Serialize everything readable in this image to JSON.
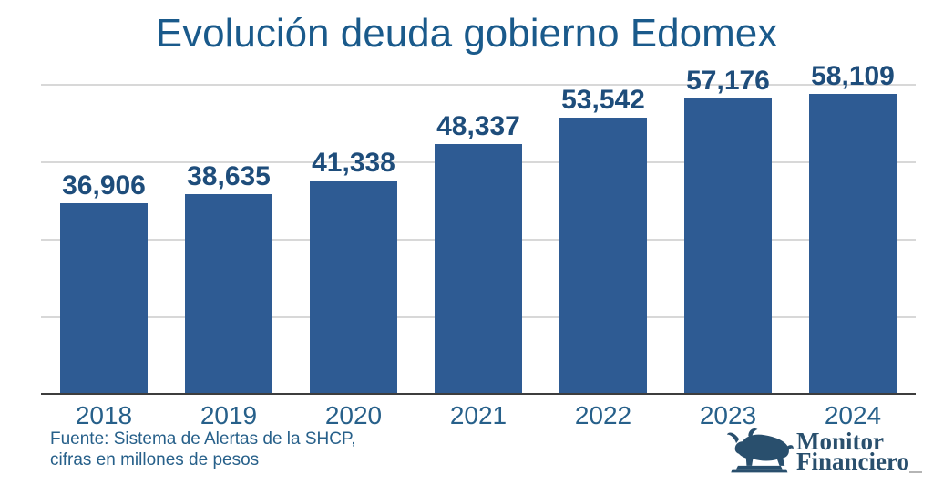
{
  "chart_data": {
    "type": "bar",
    "title": "Evolución deuda gobierno Edomex",
    "categories": [
      "2018",
      "2019",
      "2020",
      "2021",
      "2022",
      "2023",
      "2024"
    ],
    "values": [
      36906,
      38635,
      41338,
      48337,
      53542,
      57176,
      58109
    ],
    "value_labels": [
      "36,906",
      "38,635",
      "41,338",
      "48,337",
      "53,542",
      "57,176",
      "58,109"
    ],
    "xlabel": "",
    "ylabel": "",
    "ylim": [
      0,
      60000
    ],
    "grid_step": 15000,
    "grid": true,
    "legend": false,
    "bar_orientation": "vertical"
  },
  "footer": {
    "source_line1": "Fuente: Sistema de Alertas de la SHCP,",
    "source_line2": "cifras en millones de pesos"
  },
  "logo": {
    "line1": "Monitor",
    "line2": "Financiero",
    "icon": "bull-statue-icon"
  },
  "colors": {
    "title": "#1a5a8b",
    "value_label": "#1e4d7b",
    "axis_text": "#27608a",
    "footer": "#27608a",
    "bar": "#2e5b93",
    "grid": "#d8d8d8",
    "axis_line": "#3d3d3d",
    "logo": "#294f6d"
  }
}
